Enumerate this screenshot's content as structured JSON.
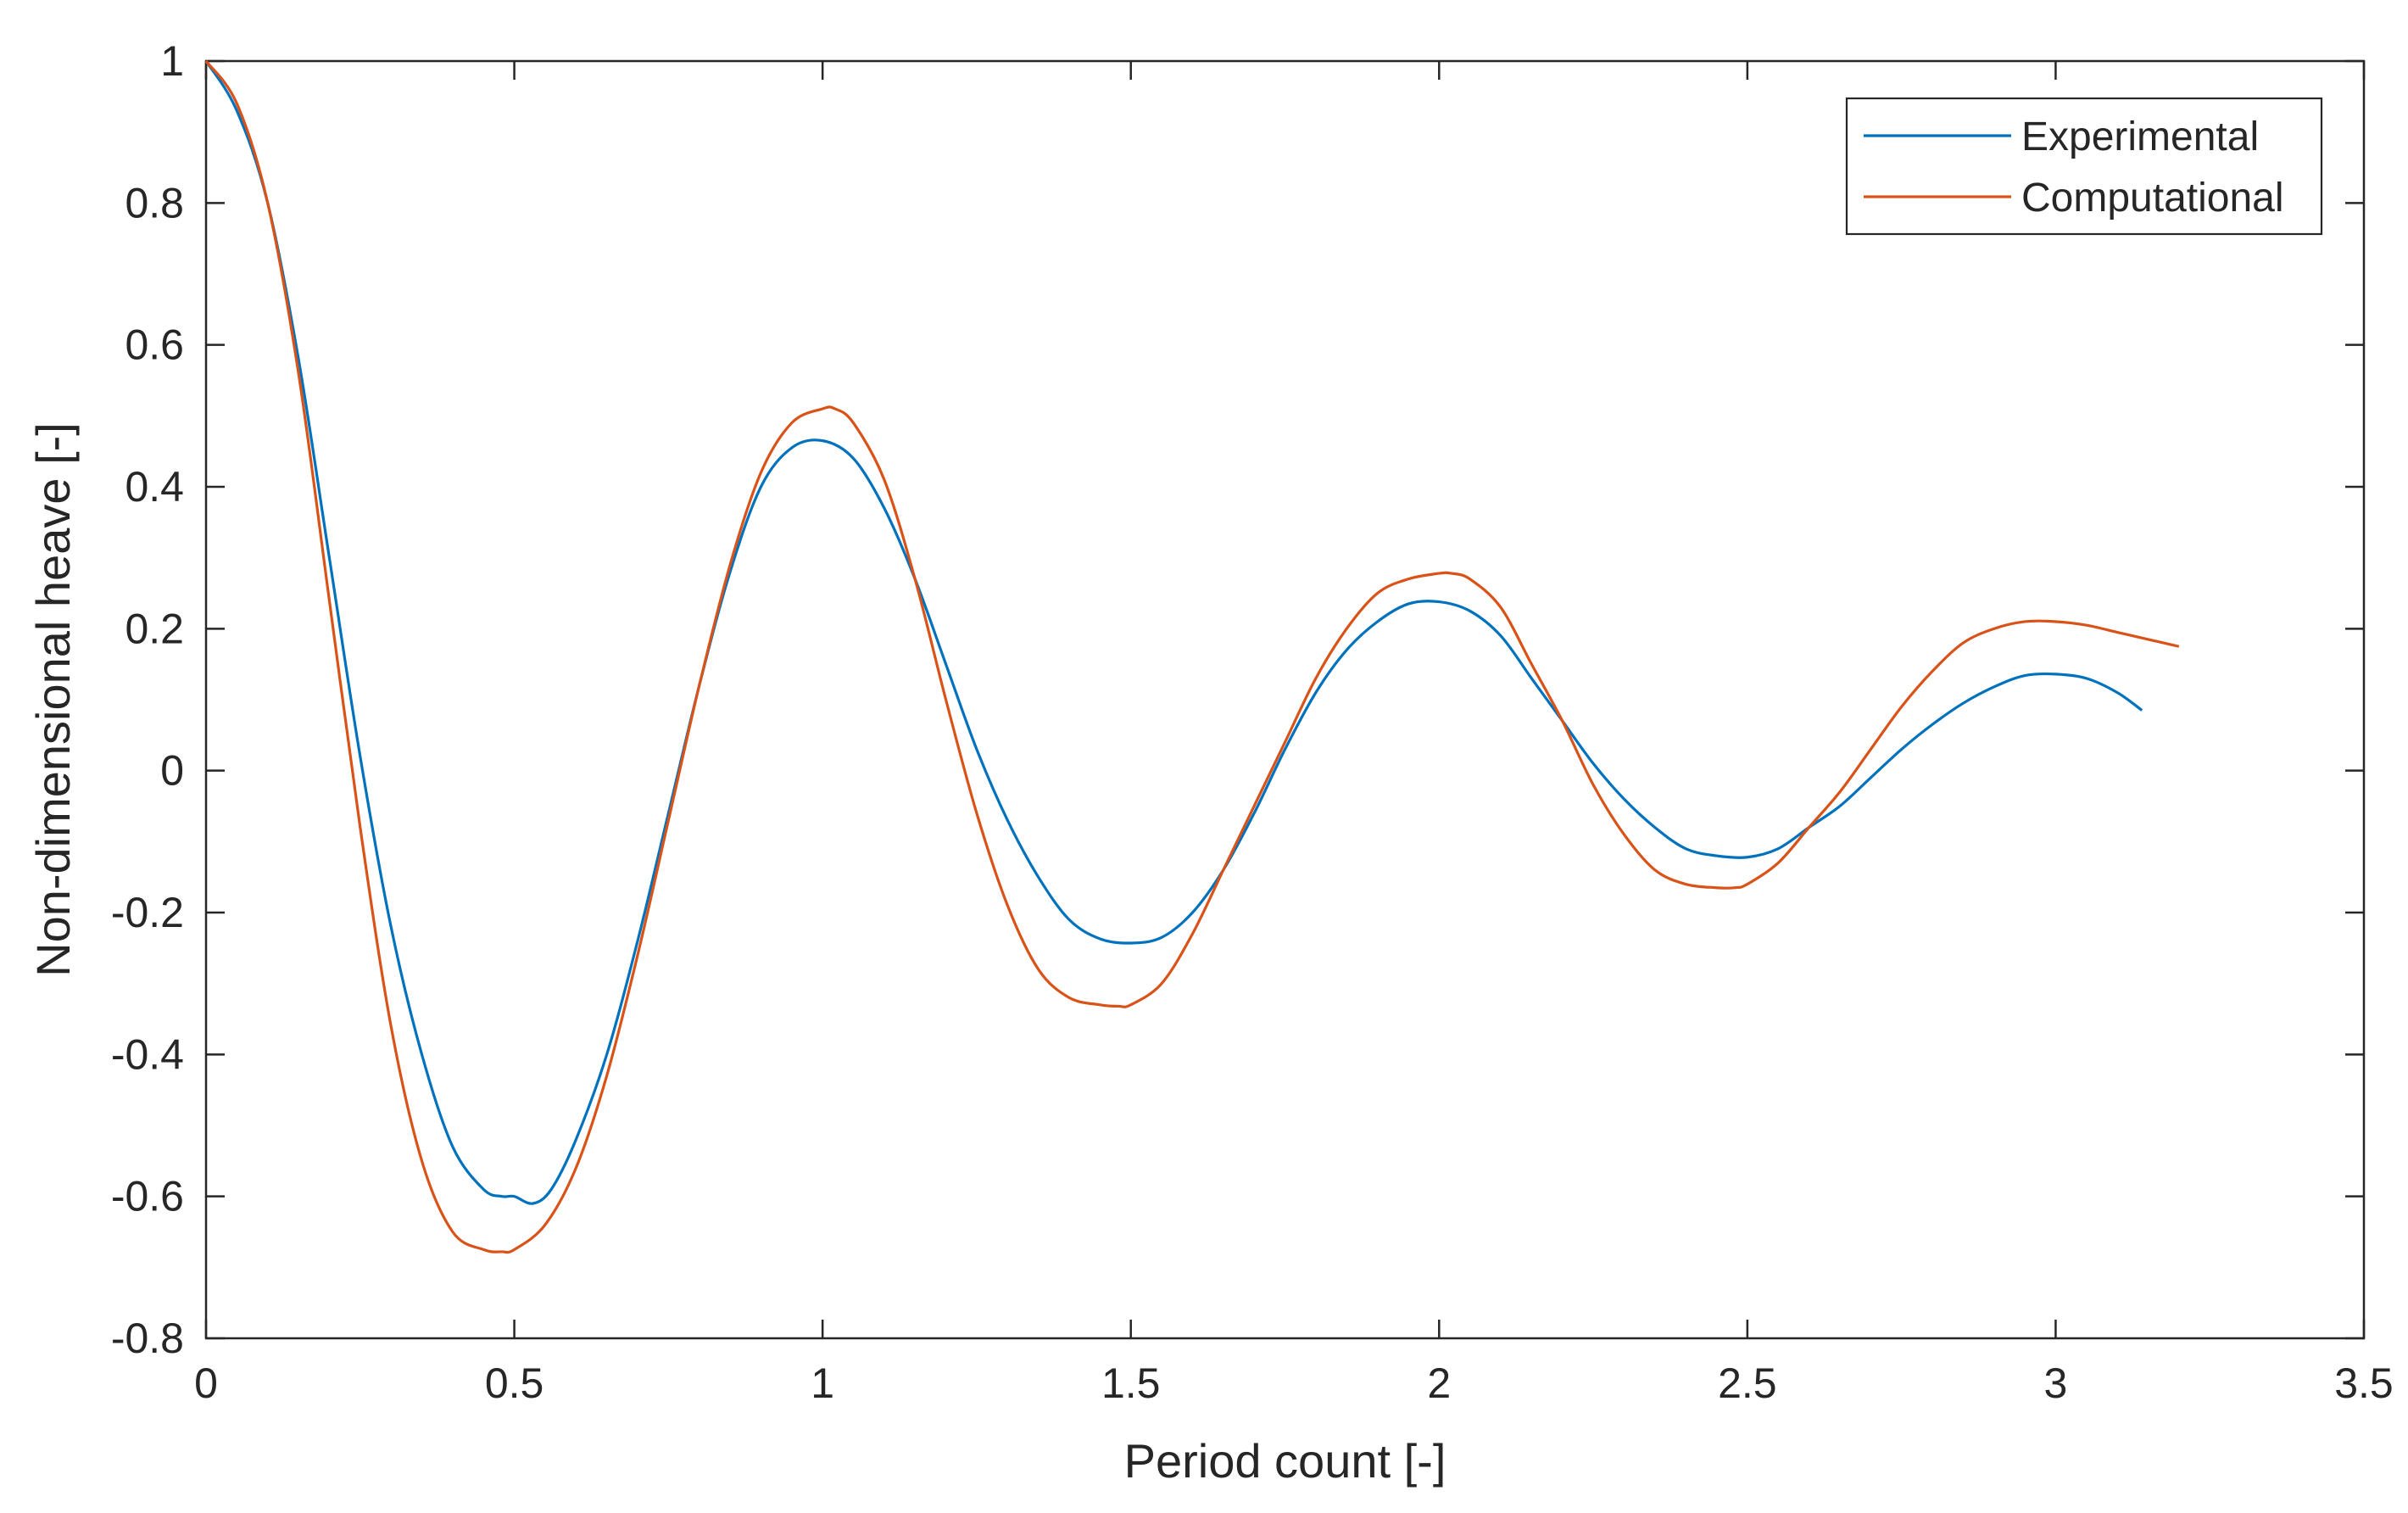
{
  "chart_data": {
    "type": "line",
    "title": "",
    "xlabel": "Period count [-]",
    "ylabel": "Non-dimensional heave [-]",
    "xlim": [
      0,
      3.5
    ],
    "ylim": [
      -0.8,
      1
    ],
    "xticks": [
      0,
      0.5,
      1,
      1.5,
      2,
      2.5,
      3,
      3.5
    ],
    "xtick_labels": [
      "0",
      "0.5",
      "1",
      "1.5",
      "2",
      "2.5",
      "3",
      "3.5"
    ],
    "yticks": [
      -0.8,
      -0.6,
      -0.4,
      -0.2,
      0,
      0.2,
      0.4,
      0.6,
      0.8,
      1
    ],
    "ytick_labels": [
      "-0.8",
      "-0.6",
      "-0.4",
      "-0.2",
      "0",
      "0.2",
      "0.4",
      "0.6",
      "0.8",
      "1"
    ],
    "grid": false,
    "legend_position": "top-right",
    "series": [
      {
        "name": "Experimental",
        "color": "#0072BD",
        "x": [
          0,
          0.05,
          0.1,
          0.15,
          0.2,
          0.25,
          0.3,
          0.35,
          0.4,
          0.45,
          0.48,
          0.5,
          0.53,
          0.56,
          0.6,
          0.65,
          0.7,
          0.75,
          0.8,
          0.85,
          0.9,
          0.95,
          1.0,
          1.05,
          1.1,
          1.15,
          1.2,
          1.25,
          1.3,
          1.35,
          1.4,
          1.45,
          1.5,
          1.55,
          1.6,
          1.65,
          1.7,
          1.75,
          1.8,
          1.85,
          1.9,
          1.95,
          2.0,
          2.05,
          2.1,
          2.15,
          2.2,
          2.25,
          2.3,
          2.35,
          2.4,
          2.45,
          2.5,
          2.55,
          2.6,
          2.65,
          2.7,
          2.75,
          2.8,
          2.85,
          2.9,
          2.95,
          3.0,
          3.05,
          3.1,
          3.14
        ],
        "y": [
          1.0,
          0.93,
          0.8,
          0.58,
          0.3,
          0.02,
          -0.22,
          -0.4,
          -0.53,
          -0.59,
          -0.6,
          -0.6,
          -0.61,
          -0.59,
          -0.52,
          -0.4,
          -0.24,
          -0.06,
          0.12,
          0.28,
          0.4,
          0.455,
          0.465,
          0.44,
          0.37,
          0.27,
          0.15,
          0.03,
          -0.07,
          -0.15,
          -0.21,
          -0.237,
          -0.243,
          -0.235,
          -0.2,
          -0.14,
          -0.06,
          0.03,
          0.11,
          0.17,
          0.21,
          0.235,
          0.238,
          0.225,
          0.19,
          0.13,
          0.07,
          0.01,
          -0.04,
          -0.08,
          -0.11,
          -0.12,
          -0.122,
          -0.11,
          -0.08,
          -0.05,
          -0.01,
          0.03,
          0.065,
          0.095,
          0.118,
          0.134,
          0.136,
          0.13,
          0.11,
          0.085
        ]
      },
      {
        "name": "Computational",
        "color": "#D95319",
        "x": [
          0,
          0.05,
          0.1,
          0.15,
          0.2,
          0.25,
          0.3,
          0.35,
          0.4,
          0.45,
          0.48,
          0.5,
          0.55,
          0.6,
          0.65,
          0.7,
          0.75,
          0.8,
          0.85,
          0.9,
          0.95,
          1.0,
          1.02,
          1.05,
          1.1,
          1.15,
          1.2,
          1.25,
          1.3,
          1.35,
          1.4,
          1.45,
          1.48,
          1.5,
          1.55,
          1.6,
          1.65,
          1.7,
          1.75,
          1.8,
          1.85,
          1.9,
          1.95,
          2.0,
          2.02,
          2.05,
          2.1,
          2.15,
          2.2,
          2.25,
          2.3,
          2.35,
          2.4,
          2.45,
          2.48,
          2.5,
          2.55,
          2.6,
          2.65,
          2.7,
          2.75,
          2.8,
          2.85,
          2.9,
          2.95,
          3.0,
          3.05,
          3.1,
          3.15,
          3.2
        ],
        "y": [
          1.0,
          0.94,
          0.8,
          0.56,
          0.24,
          -0.08,
          -0.36,
          -0.55,
          -0.65,
          -0.675,
          -0.678,
          -0.675,
          -0.64,
          -0.56,
          -0.43,
          -0.26,
          -0.07,
          0.12,
          0.29,
          0.42,
          0.49,
          0.51,
          0.51,
          0.49,
          0.41,
          0.27,
          0.1,
          -0.06,
          -0.19,
          -0.28,
          -0.32,
          -0.33,
          -0.332,
          -0.33,
          -0.3,
          -0.23,
          -0.14,
          -0.05,
          0.04,
          0.13,
          0.2,
          0.25,
          0.27,
          0.278,
          0.278,
          0.27,
          0.23,
          0.15,
          0.07,
          -0.02,
          -0.09,
          -0.14,
          -0.16,
          -0.165,
          -0.165,
          -0.16,
          -0.13,
          -0.08,
          -0.03,
          0.03,
          0.09,
          0.14,
          0.18,
          0.2,
          0.21,
          0.21,
          0.205,
          0.195,
          0.185,
          0.175
        ]
      }
    ]
  }
}
